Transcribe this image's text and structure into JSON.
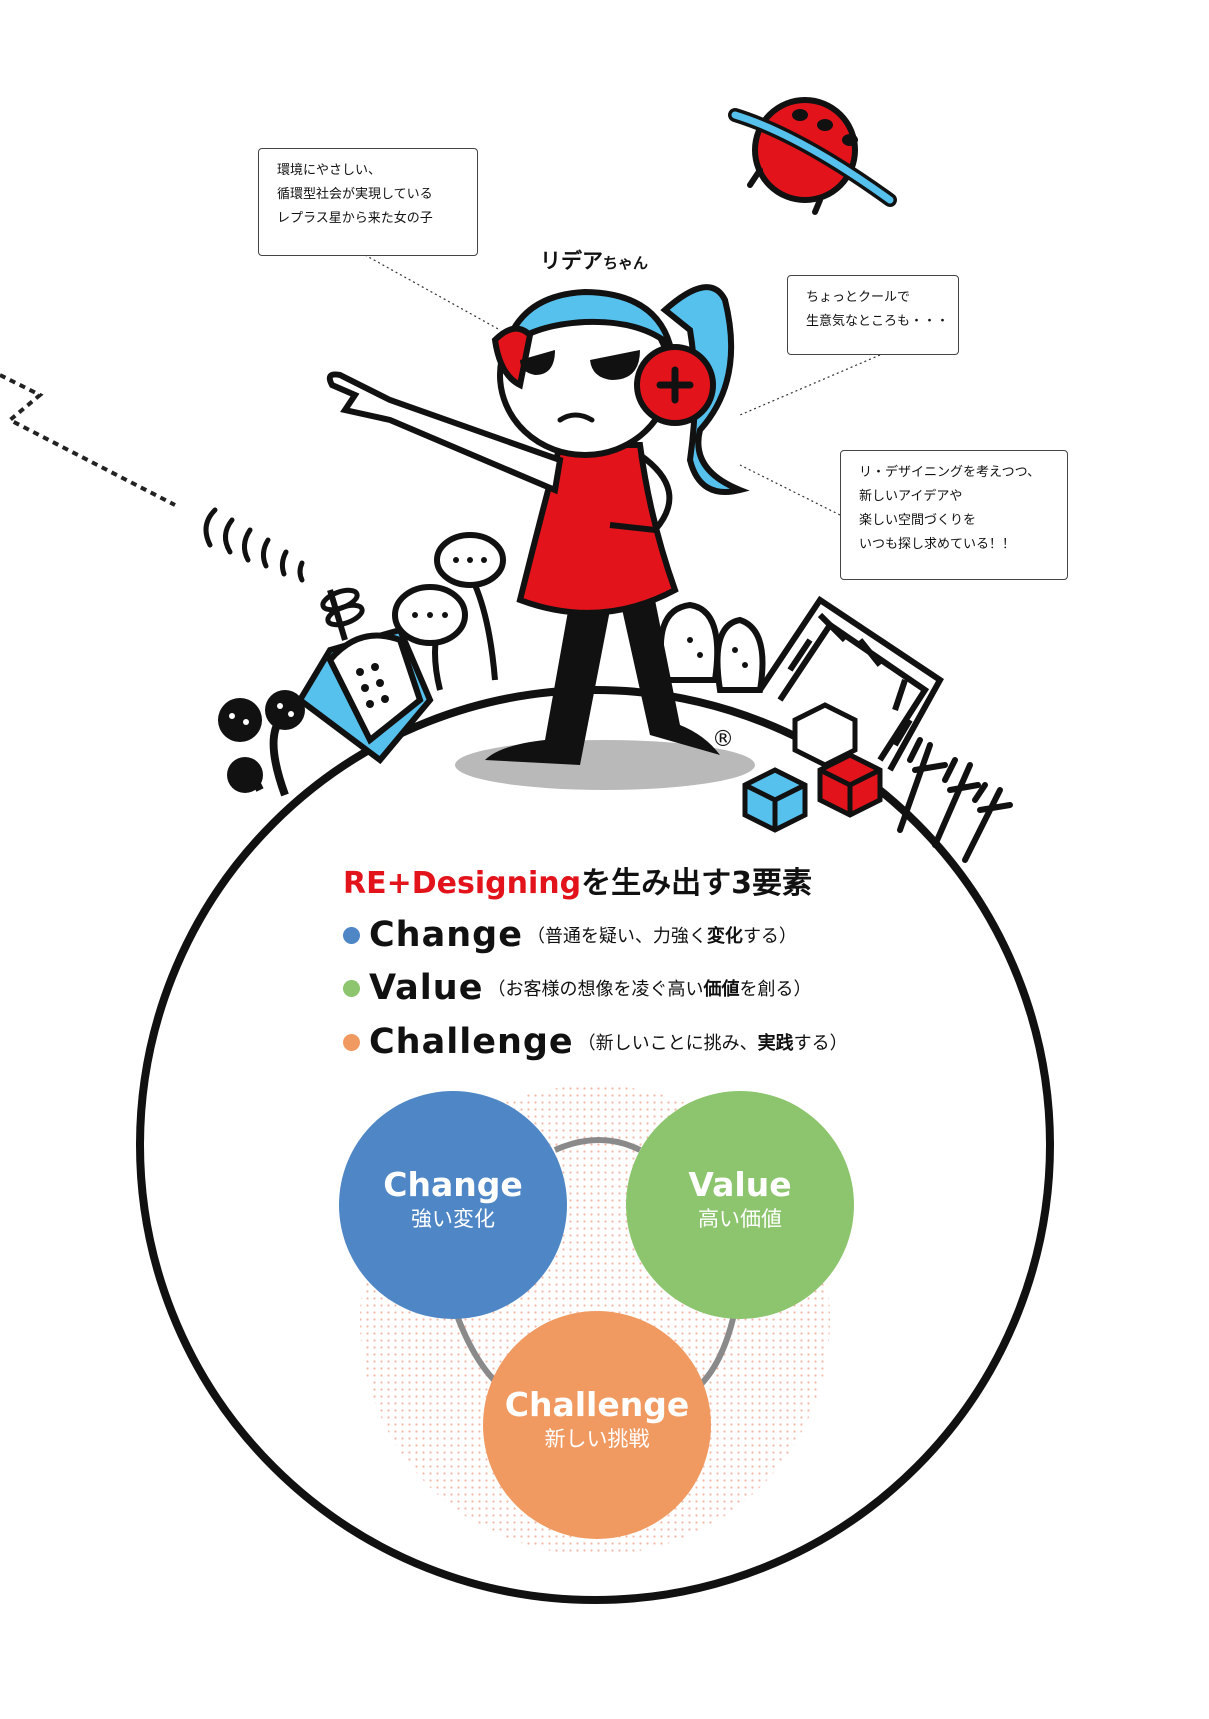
{
  "character": {
    "name_main": "リデア",
    "name_suffix": "ちゃん",
    "trademark": "®"
  },
  "notes": {
    "origin": [
      "環境にやさしい、",
      "循環型社会が実現している",
      "レプラス星から来た女の子"
    ],
    "personality": [
      "ちょっとクールで",
      "生意気なところも・・・"
    ],
    "mission": [
      "リ・デザイニングを考えつつ、",
      "新しいアイデアや",
      "楽しい空間づくりを",
      "いつも探し求めている！！"
    ]
  },
  "heading": {
    "accent": "RE+Designing",
    "rest": "を生み出す3要素"
  },
  "elements": [
    {
      "word": "Change",
      "open": "（普通を疑い、力強く",
      "bold": "変化",
      "close": "する）",
      "color": "#4f86c6"
    },
    {
      "word": "Value",
      "open": "（お客様の想像を凌ぐ高い",
      "bold": "価値",
      "close": "を創る）",
      "color": "#8dc56e"
    },
    {
      "word": "Challenge",
      "open": "（新しいことに挑み、",
      "bold": "実践",
      "close": "する）",
      "color": "#f09a62"
    }
  ],
  "circles": [
    {
      "title": "Change",
      "sub": "強い変化",
      "color": "#4f86c6"
    },
    {
      "title": "Value",
      "sub": "高い価値",
      "color": "#8dc56e"
    },
    {
      "title": "Challenge",
      "sub": "新しい挑戦",
      "color": "#f09a62"
    }
  ]
}
